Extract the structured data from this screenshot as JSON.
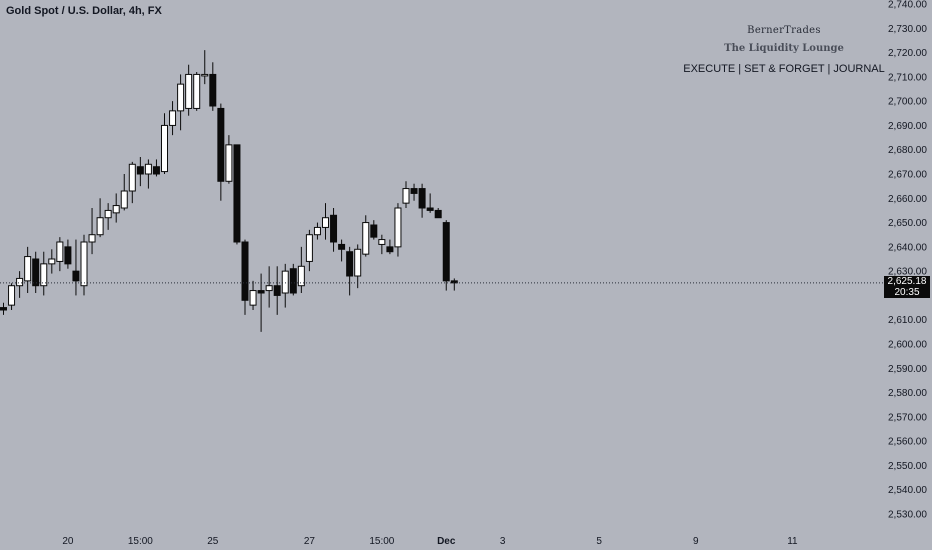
{
  "header": {
    "symbol": "Gold Spot / U.S. Dollar, 4h, FX"
  },
  "branding": {
    "name": "BernerTrades",
    "subtitle": "The Liquidity Lounge",
    "tagline": "EXECUTE  |  SET & FORGET  |  JOURNAL"
  },
  "current_price": {
    "value": "2,625.18",
    "countdown": "20:35"
  },
  "chart_data": {
    "type": "candlestick",
    "price_axis": {
      "ylim": [
        2525,
        2745
      ],
      "ticks": [
        2740,
        2730,
        2720,
        2710,
        2700,
        2690,
        2680,
        2670,
        2660,
        2650,
        2640,
        2630,
        2610,
        2600,
        2590,
        2580,
        2570,
        2560,
        2550,
        2540,
        2530
      ],
      "tick_labels": [
        "2,740.00",
        "2,730.00",
        "2,720.00",
        "2,710.00",
        "2,700.00",
        "2,690.00",
        "2,680.00",
        "2,670.00",
        "2,660.00",
        "2,650.00",
        "2,640.00",
        "2,630.00",
        "2,610.00",
        "2,600.00",
        "2,590.00",
        "2,580.00",
        "2,570.00",
        "2,560.00",
        "2,550.00",
        "2,540.00",
        "2,530.00"
      ]
    },
    "time_axis": {
      "labels": [
        "20",
        "15:00",
        "25",
        "27",
        "15:00",
        "Dec",
        "3",
        "5",
        "9",
        "11"
      ],
      "label_index": [
        8,
        17,
        26,
        38,
        47,
        55,
        62,
        74,
        86,
        98
      ]
    },
    "last_price": 2625.18,
    "candles": [
      {
        "i": 0,
        "o": 2615,
        "h": 2617,
        "l": 2612,
        "c": 2614
      },
      {
        "i": 1,
        "o": 2616,
        "h": 2625,
        "l": 2614,
        "c": 2624
      },
      {
        "i": 2,
        "o": 2624,
        "h": 2630,
        "l": 2619,
        "c": 2627
      },
      {
        "i": 3,
        "o": 2626,
        "h": 2640,
        "l": 2621,
        "c": 2636
      },
      {
        "i": 4,
        "o": 2635,
        "h": 2638,
        "l": 2621,
        "c": 2624
      },
      {
        "i": 5,
        "o": 2624,
        "h": 2638,
        "l": 2620,
        "c": 2633
      },
      {
        "i": 6,
        "o": 2633,
        "h": 2639,
        "l": 2629,
        "c": 2635
      },
      {
        "i": 7,
        "o": 2634,
        "h": 2644,
        "l": 2630,
        "c": 2642
      },
      {
        "i": 8,
        "o": 2640,
        "h": 2643,
        "l": 2631,
        "c": 2633
      },
      {
        "i": 9,
        "o": 2630,
        "h": 2643,
        "l": 2620,
        "c": 2626
      },
      {
        "i": 10,
        "o": 2624,
        "h": 2645,
        "l": 2620,
        "c": 2642
      },
      {
        "i": 11,
        "o": 2642,
        "h": 2656,
        "l": 2637,
        "c": 2645
      },
      {
        "i": 12,
        "o": 2645,
        "h": 2660,
        "l": 2644,
        "c": 2652
      },
      {
        "i": 13,
        "o": 2652,
        "h": 2658,
        "l": 2647,
        "c": 2655
      },
      {
        "i": 14,
        "o": 2654,
        "h": 2662,
        "l": 2650,
        "c": 2657
      },
      {
        "i": 15,
        "o": 2656,
        "h": 2670,
        "l": 2655,
        "c": 2663
      },
      {
        "i": 16,
        "o": 2663,
        "h": 2675,
        "l": 2658,
        "c": 2674
      },
      {
        "i": 17,
        "o": 2673,
        "h": 2677,
        "l": 2665,
        "c": 2670
      },
      {
        "i": 18,
        "o": 2670,
        "h": 2676,
        "l": 2664,
        "c": 2674
      },
      {
        "i": 19,
        "o": 2673,
        "h": 2676,
        "l": 2669,
        "c": 2670
      },
      {
        "i": 20,
        "o": 2671,
        "h": 2695,
        "l": 2670,
        "c": 2690
      },
      {
        "i": 21,
        "o": 2690,
        "h": 2700,
        "l": 2686,
        "c": 2696
      },
      {
        "i": 22,
        "o": 2696,
        "h": 2711,
        "l": 2688,
        "c": 2707
      },
      {
        "i": 23,
        "o": 2697,
        "h": 2715,
        "l": 2694,
        "c": 2711
      },
      {
        "i": 24,
        "o": 2697,
        "h": 2712,
        "l": 2696,
        "c": 2711
      },
      {
        "i": 25,
        "o": 2711,
        "h": 2721,
        "l": 2707,
        "c": 2711
      },
      {
        "i": 26,
        "o": 2711,
        "h": 2716,
        "l": 2696,
        "c": 2698
      },
      {
        "i": 27,
        "o": 2697,
        "h": 2699,
        "l": 2659,
        "c": 2667
      },
      {
        "i": 28,
        "o": 2667,
        "h": 2686,
        "l": 2666,
        "c": 2682
      },
      {
        "i": 29,
        "o": 2682,
        "h": 2682,
        "l": 2641,
        "c": 2642
      },
      {
        "i": 30,
        "o": 2642,
        "h": 2643,
        "l": 2612,
        "c": 2618
      },
      {
        "i": 31,
        "o": 2616,
        "h": 2626,
        "l": 2614,
        "c": 2622
      },
      {
        "i": 32,
        "o": 2622,
        "h": 2629,
        "l": 2605,
        "c": 2621
      },
      {
        "i": 33,
        "o": 2622,
        "h": 2632,
        "l": 2615,
        "c": 2624
      },
      {
        "i": 34,
        "o": 2624,
        "h": 2632,
        "l": 2612,
        "c": 2620
      },
      {
        "i": 35,
        "o": 2621,
        "h": 2633,
        "l": 2615,
        "c": 2630
      },
      {
        "i": 36,
        "o": 2631,
        "h": 2633,
        "l": 2620,
        "c": 2621
      },
      {
        "i": 37,
        "o": 2624,
        "h": 2640,
        "l": 2621,
        "c": 2632
      },
      {
        "i": 38,
        "o": 2634,
        "h": 2647,
        "l": 2630,
        "c": 2645
      },
      {
        "i": 39,
        "o": 2645,
        "h": 2650,
        "l": 2643,
        "c": 2648
      },
      {
        "i": 40,
        "o": 2648,
        "h": 2658,
        "l": 2643,
        "c": 2652
      },
      {
        "i": 41,
        "o": 2653,
        "h": 2656,
        "l": 2638,
        "c": 2642
      },
      {
        "i": 42,
        "o": 2641,
        "h": 2643,
        "l": 2634,
        "c": 2639
      },
      {
        "i": 43,
        "o": 2638,
        "h": 2640,
        "l": 2620,
        "c": 2628
      },
      {
        "i": 44,
        "o": 2628,
        "h": 2641,
        "l": 2623,
        "c": 2639
      },
      {
        "i": 45,
        "o": 2637,
        "h": 2653,
        "l": 2636,
        "c": 2650
      },
      {
        "i": 46,
        "o": 2649,
        "h": 2651,
        "l": 2643,
        "c": 2644
      },
      {
        "i": 47,
        "o": 2641,
        "h": 2645,
        "l": 2637,
        "c": 2643
      },
      {
        "i": 48,
        "o": 2640,
        "h": 2643,
        "l": 2637,
        "c": 2638
      },
      {
        "i": 49,
        "o": 2640,
        "h": 2658,
        "l": 2636,
        "c": 2656
      },
      {
        "i": 50,
        "o": 2658,
        "h": 2667,
        "l": 2656,
        "c": 2664
      },
      {
        "i": 51,
        "o": 2664,
        "h": 2666,
        "l": 2659,
        "c": 2662
      },
      {
        "i": 52,
        "o": 2664,
        "h": 2666,
        "l": 2652,
        "c": 2656
      },
      {
        "i": 53,
        "o": 2656,
        "h": 2662,
        "l": 2654,
        "c": 2655
      },
      {
        "i": 54,
        "o": 2655,
        "h": 2656,
        "l": 2652,
        "c": 2652
      },
      {
        "i": 55,
        "o": 2650,
        "h": 2651,
        "l": 2622,
        "c": 2626
      },
      {
        "i": 56,
        "o": 2626,
        "h": 2627,
        "l": 2622,
        "c": 2625.18
      }
    ]
  },
  "colors": {
    "background": "#b2b5be",
    "bull_body": "#ffffff",
    "bear_body": "#0b0b0b",
    "wick": "#0b0b0b",
    "price_line": "#2a2e39"
  }
}
